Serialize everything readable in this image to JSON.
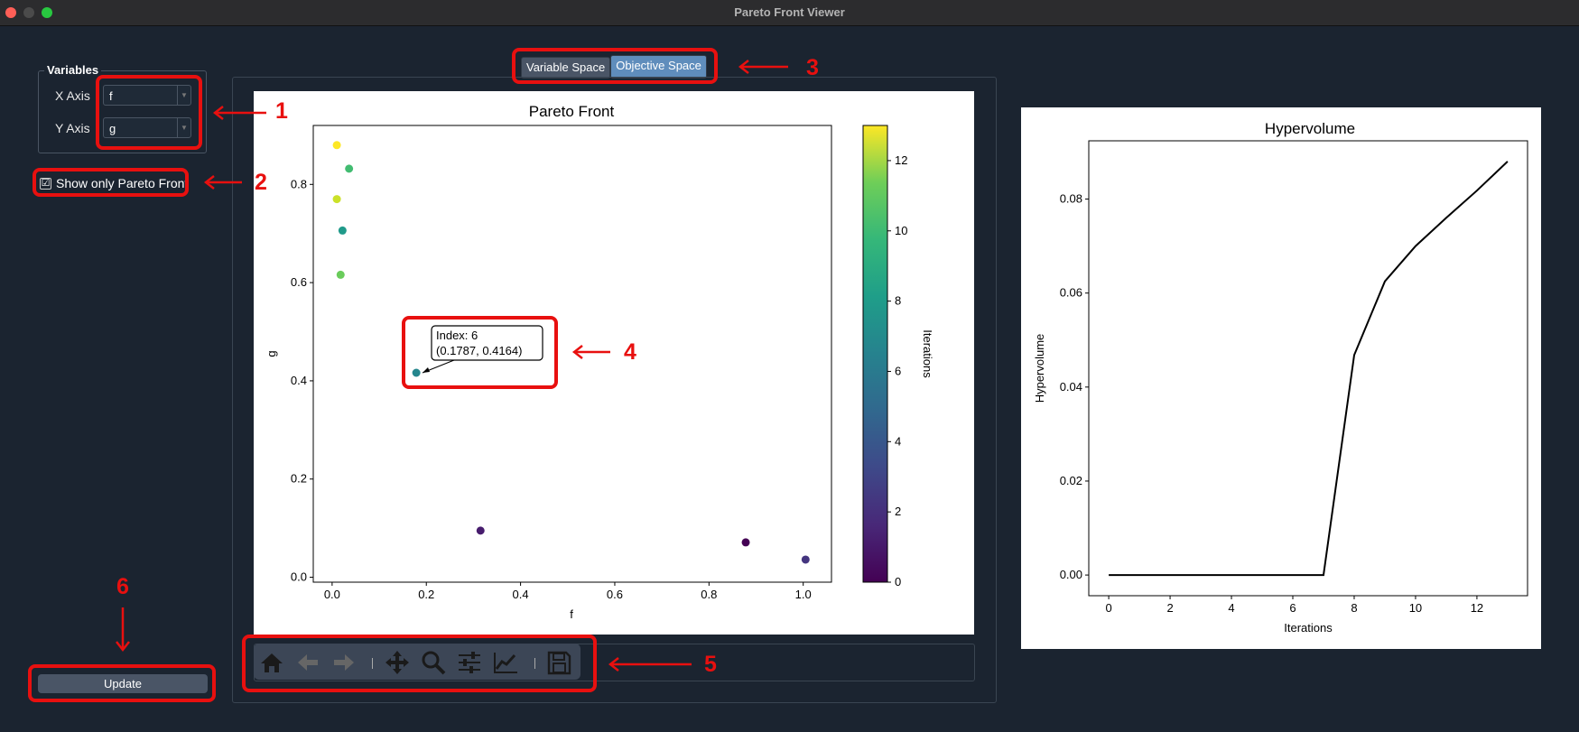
{
  "window": {
    "title": "Pareto Front Viewer"
  },
  "variables": {
    "group_title": "Variables",
    "x_axis_label": "X Axis",
    "x_axis_value": "f",
    "y_axis_label": "Y Axis",
    "y_axis_value": "g"
  },
  "pareto_checkbox": {
    "label": "Show only Pareto Front",
    "checked": true,
    "mark": "☑"
  },
  "update_button": {
    "label": "Update"
  },
  "tabs": [
    {
      "label": "Variable Space",
      "active": false
    },
    {
      "label": "Objective Space",
      "active": true
    }
  ],
  "annotations": [
    "1",
    "2",
    "3",
    "4",
    "5",
    "6"
  ],
  "tooltip": {
    "line1": "Index: 6",
    "line2": "(0.1787, 0.4164)"
  },
  "toolbar": {
    "icons": [
      "home-icon",
      "back-arrow-icon",
      "forward-arrow-icon",
      "pan-icon",
      "zoom-icon",
      "subplots-sliders-icon",
      "axes-line-icon",
      "save-floppy-icon"
    ]
  },
  "colors": {
    "background": "#1b2430",
    "annotation": "#e8100f",
    "tab_active": "#5f8dbc",
    "button": "#4a5566"
  },
  "chart_data": [
    {
      "type": "scatter",
      "title": "Pareto Front",
      "xlabel": "f",
      "ylabel": "g",
      "xlim": [
        -0.04,
        1.06
      ],
      "ylim": [
        -0.01,
        0.92
      ],
      "xticks": [
        0.0,
        0.2,
        0.4,
        0.6,
        0.8,
        1.0
      ],
      "xtick_labels": [
        "0.0",
        "0.2",
        "0.4",
        "0.6",
        "0.8",
        "1.0"
      ],
      "yticks": [
        0.0,
        0.2,
        0.4,
        0.6,
        0.8
      ],
      "ytick_labels": [
        "0.0",
        "0.2",
        "0.4",
        "0.6",
        "0.8"
      ],
      "colorbar": {
        "label": "Iterations",
        "min": 0,
        "max": 13,
        "ticks": [
          0,
          2,
          4,
          6,
          8,
          10,
          12
        ],
        "tick_labels": [
          "0",
          "2",
          "4",
          "6",
          "8",
          "10",
          "12"
        ],
        "colormap": "viridis"
      },
      "points": [
        {
          "x": 0.01,
          "y": 0.88,
          "iteration": 13
        },
        {
          "x": 0.036,
          "y": 0.832,
          "iteration": 9
        },
        {
          "x": 0.01,
          "y": 0.77,
          "iteration": 12
        },
        {
          "x": 0.022,
          "y": 0.706,
          "iteration": 7
        },
        {
          "x": 0.018,
          "y": 0.616,
          "iteration": 10
        },
        {
          "x": 0.1787,
          "y": 0.4164,
          "iteration": 6
        },
        {
          "x": 0.315,
          "y": 0.095,
          "iteration": 1
        },
        {
          "x": 0.878,
          "y": 0.071,
          "iteration": 0
        },
        {
          "x": 1.005,
          "y": 0.036,
          "iteration": 2
        }
      ]
    },
    {
      "type": "line",
      "title": "Hypervolume",
      "xlabel": "Iterations",
      "ylabel": "Hypervolume",
      "xlim": [
        -0.65,
        13.65
      ],
      "ylim": [
        -0.0044,
        0.0924
      ],
      "xticks": [
        0,
        2,
        4,
        6,
        8,
        10,
        12
      ],
      "xtick_labels": [
        "0",
        "2",
        "4",
        "6",
        "8",
        "10",
        "12"
      ],
      "yticks": [
        0.0,
        0.02,
        0.04,
        0.06,
        0.08
      ],
      "ytick_labels": [
        "0.00",
        "0.02",
        "0.04",
        "0.06",
        "0.08"
      ],
      "x": [
        0,
        1,
        2,
        3,
        4,
        5,
        6,
        7,
        8,
        9,
        10,
        11,
        12,
        13
      ],
      "y": [
        0,
        0,
        0,
        0,
        0,
        0,
        0,
        0,
        0.0468,
        0.0625,
        0.07,
        0.076,
        0.0818,
        0.088
      ]
    }
  ]
}
